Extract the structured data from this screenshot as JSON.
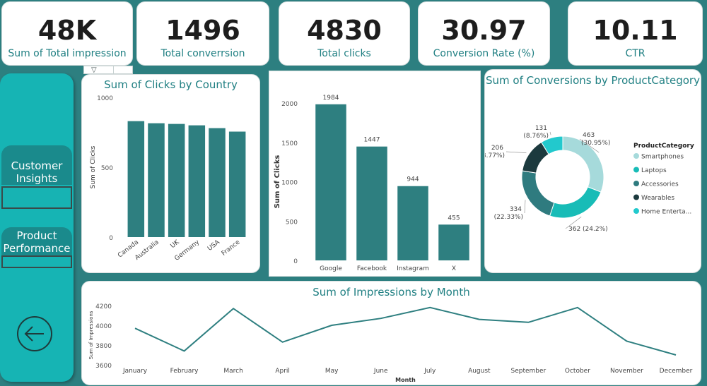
{
  "kpis": [
    {
      "value": "48K",
      "label": "Sum of Total impression"
    },
    {
      "value": "1496",
      "label": "Total converrsion"
    },
    {
      "value": "4830",
      "label": "Total clicks"
    },
    {
      "value": "30.97",
      "label": "Conversion Rate (%)"
    },
    {
      "value": "10.11",
      "label": "CTR"
    }
  ],
  "nav": {
    "customer_insights": "Customer Insights",
    "product_performance": "Product Performance",
    "back_icon": "back-arrow-icon"
  },
  "colors": {
    "teal": "#2e7f80",
    "smartphones": "#a6dadb",
    "laptops": "#18bcb7",
    "accessories": "#2f7b7f",
    "wearables": "#1c3a3e",
    "home": "#22c9cd"
  },
  "chart_data": [
    {
      "type": "bar",
      "title": "Sum of Clicks by Country",
      "ylabel": "Sum of Clicks",
      "xlabel": "",
      "categories": [
        "Canada",
        "Australia",
        "UK",
        "Germany",
        "USA",
        "France"
      ],
      "values": [
        830,
        815,
        810,
        800,
        780,
        755
      ],
      "ylim": [
        0,
        1000
      ],
      "yticks": [
        "0",
        "500",
        "1000"
      ]
    },
    {
      "type": "bar",
      "title": "",
      "ylabel": "Sum of Clicks",
      "xlabel": "",
      "categories": [
        "Google",
        "Facebook",
        "Instagram",
        "X"
      ],
      "values": [
        1984,
        1447,
        944,
        455
      ],
      "data_labels": [
        "1984",
        "1447",
        "944",
        "455"
      ],
      "ylim": [
        0,
        2000
      ],
      "yticks": [
        "0",
        "500",
        "1000",
        "1500",
        "2000"
      ]
    },
    {
      "type": "pie",
      "title": "Sum of Conversions by ProductCategory",
      "legend_title": "ProductCategory",
      "legend_position": "right",
      "labels": [
        "Smartphones",
        "Laptops",
        "Accessories",
        "Wearables",
        "Home Enterta..."
      ],
      "values": [
        463,
        362,
        334,
        206,
        131
      ],
      "slice_labels": [
        "463 (30.95%)",
        "362 (24.2%)",
        "334 (22.33%)",
        "206 (13.77%)",
        "131 (8.76%)"
      ]
    },
    {
      "type": "line",
      "title": "Sum of Impressions by Month",
      "xlabel": "Month",
      "ylabel": "Sum of Impressions",
      "categories": [
        "January",
        "February",
        "March",
        "April",
        "May",
        "June",
        "July",
        "August",
        "September",
        "October",
        "November",
        "December"
      ],
      "values": [
        3970,
        3740,
        4170,
        3830,
        4000,
        4070,
        4180,
        4060,
        4030,
        4180,
        3840,
        3700
      ],
      "ylim": [
        3600,
        4200
      ],
      "yticks": [
        "3600",
        "3800",
        "4000",
        "4200"
      ]
    }
  ]
}
